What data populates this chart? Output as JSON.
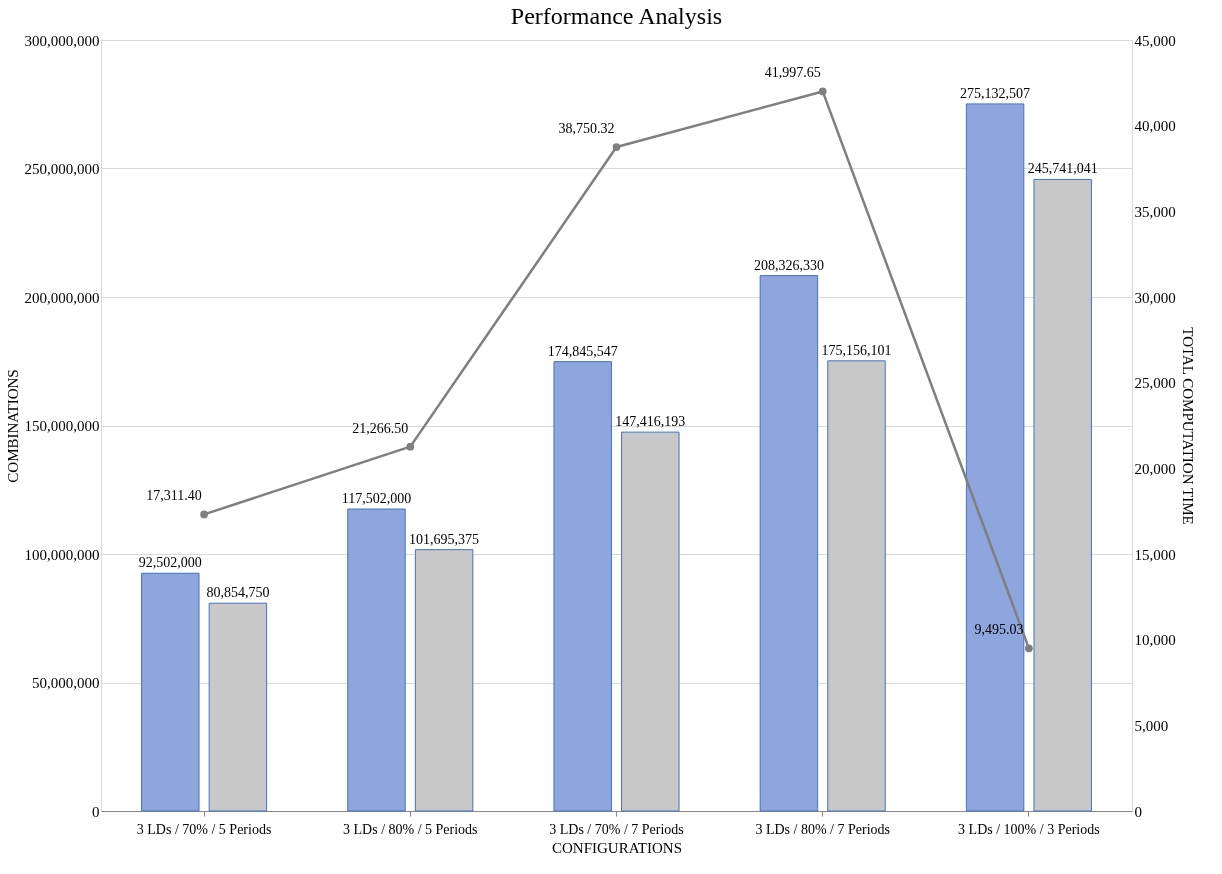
{
  "chart_data": {
    "type": "bar",
    "title": "Performance Analysis",
    "xlabel": "CONFIGURATIONS",
    "ylabel": "COMBINATIONS",
    "y2label": "TOTAL COMPUTATION TIME",
    "categories": [
      "3 LDs / 70% / 5 Periods",
      "3 LDs / 80% / 5 Periods",
      "3 LDs / 70% / 7 Periods",
      "3 LDs / 80% / 7 Periods",
      "3 LDs / 100% / 3 Periods"
    ],
    "series": [
      {
        "color": "#8fa5dd",
        "values": [
          92502000,
          117502000,
          174845547,
          208326330,
          275132507
        ],
        "value_labels": [
          "92,502,000",
          "117,502,000",
          "174,845,547",
          "208,326,330",
          "275,132,507"
        ]
      },
      {
        "color": "#c8c8c8",
        "values": [
          80854750,
          101695375,
          147416193,
          175156101,
          245741041
        ],
        "value_labels": [
          "80,854,750",
          "101,695,375",
          "147,416,193",
          "175,156,101",
          "245,741,041"
        ]
      },
      {
        "type": "line",
        "axis": "y2",
        "color": "#7f7f7f",
        "marker": "circle",
        "values": [
          17311.4,
          21266.5,
          38750.32,
          41997.65,
          9495.03
        ],
        "value_labels": [
          "17,311.40",
          "21,266.50",
          "38,750.32",
          "41,997.65",
          "9,495.03"
        ]
      }
    ],
    "ylim": [
      0,
      300000000
    ],
    "yticks": [
      {
        "value": 0,
        "label": "0"
      },
      {
        "value": 50000000,
        "label": "50,000,000"
      },
      {
        "value": 100000000,
        "label": "100,000,000"
      },
      {
        "value": 150000000,
        "label": "150,000,000"
      },
      {
        "value": 200000000,
        "label": "200,000,000"
      },
      {
        "value": 250000000,
        "label": "250,000,000"
      },
      {
        "value": 300000000,
        "label": "300,000,000"
      }
    ],
    "y2lim": [
      0,
      45000
    ],
    "y2ticks": [
      {
        "value": 0,
        "label": "0"
      },
      {
        "value": 5000,
        "label": "5,000"
      },
      {
        "value": 10000,
        "label": "10,000"
      },
      {
        "value": 15000,
        "label": "15,000"
      },
      {
        "value": 20000,
        "label": "20,000"
      },
      {
        "value": 25000,
        "label": "25,000"
      },
      {
        "value": 30000,
        "label": "30,000"
      },
      {
        "value": 35000,
        "label": "35,000"
      },
      {
        "value": 40000,
        "label": "40,000"
      },
      {
        "value": 45000,
        "label": "45,000"
      }
    ],
    "grid": "y",
    "legend": false
  }
}
